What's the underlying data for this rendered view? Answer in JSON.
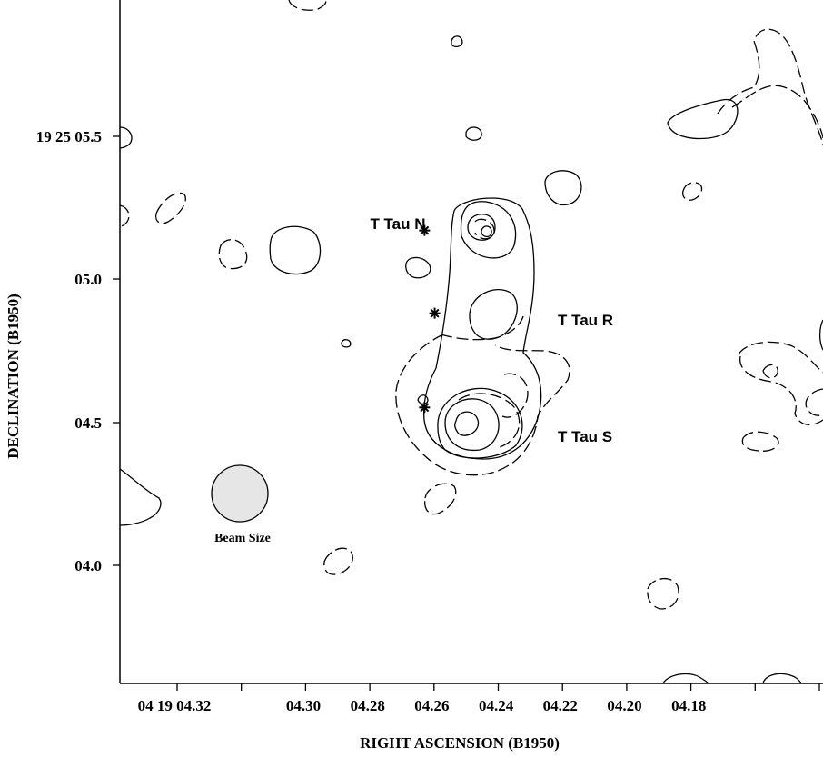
{
  "chart_data": {
    "type": "contour",
    "xlabel": "RIGHT ASCENSION (B1950)",
    "ylabel": "DECLINATION (B1950)",
    "x_ticks": [
      "04 19 04.32",
      "04.30",
      "04.28",
      "04.26",
      "04.24",
      "04.22",
      "04.20",
      "04.18"
    ],
    "y_ticks": [
      "19 25 05.5",
      "05.0",
      "04.5",
      "04.0"
    ],
    "contour_styles": [
      "solid",
      "dashed"
    ],
    "sources": [
      {
        "name": "T Tau N",
        "ra_s": 4.2465,
        "dec_s": 5.17
      },
      {
        "name": "T Tau R",
        "ra_s": 4.243,
        "dec_s": 4.88
      },
      {
        "name": "T Tau S",
        "ra_s": 4.2465,
        "dec_s": 4.55
      }
    ],
    "beam": {
      "label": "Beam Size"
    },
    "colors": {
      "beam_fill": "#e6e6e6",
      "ink": "#000000"
    }
  }
}
